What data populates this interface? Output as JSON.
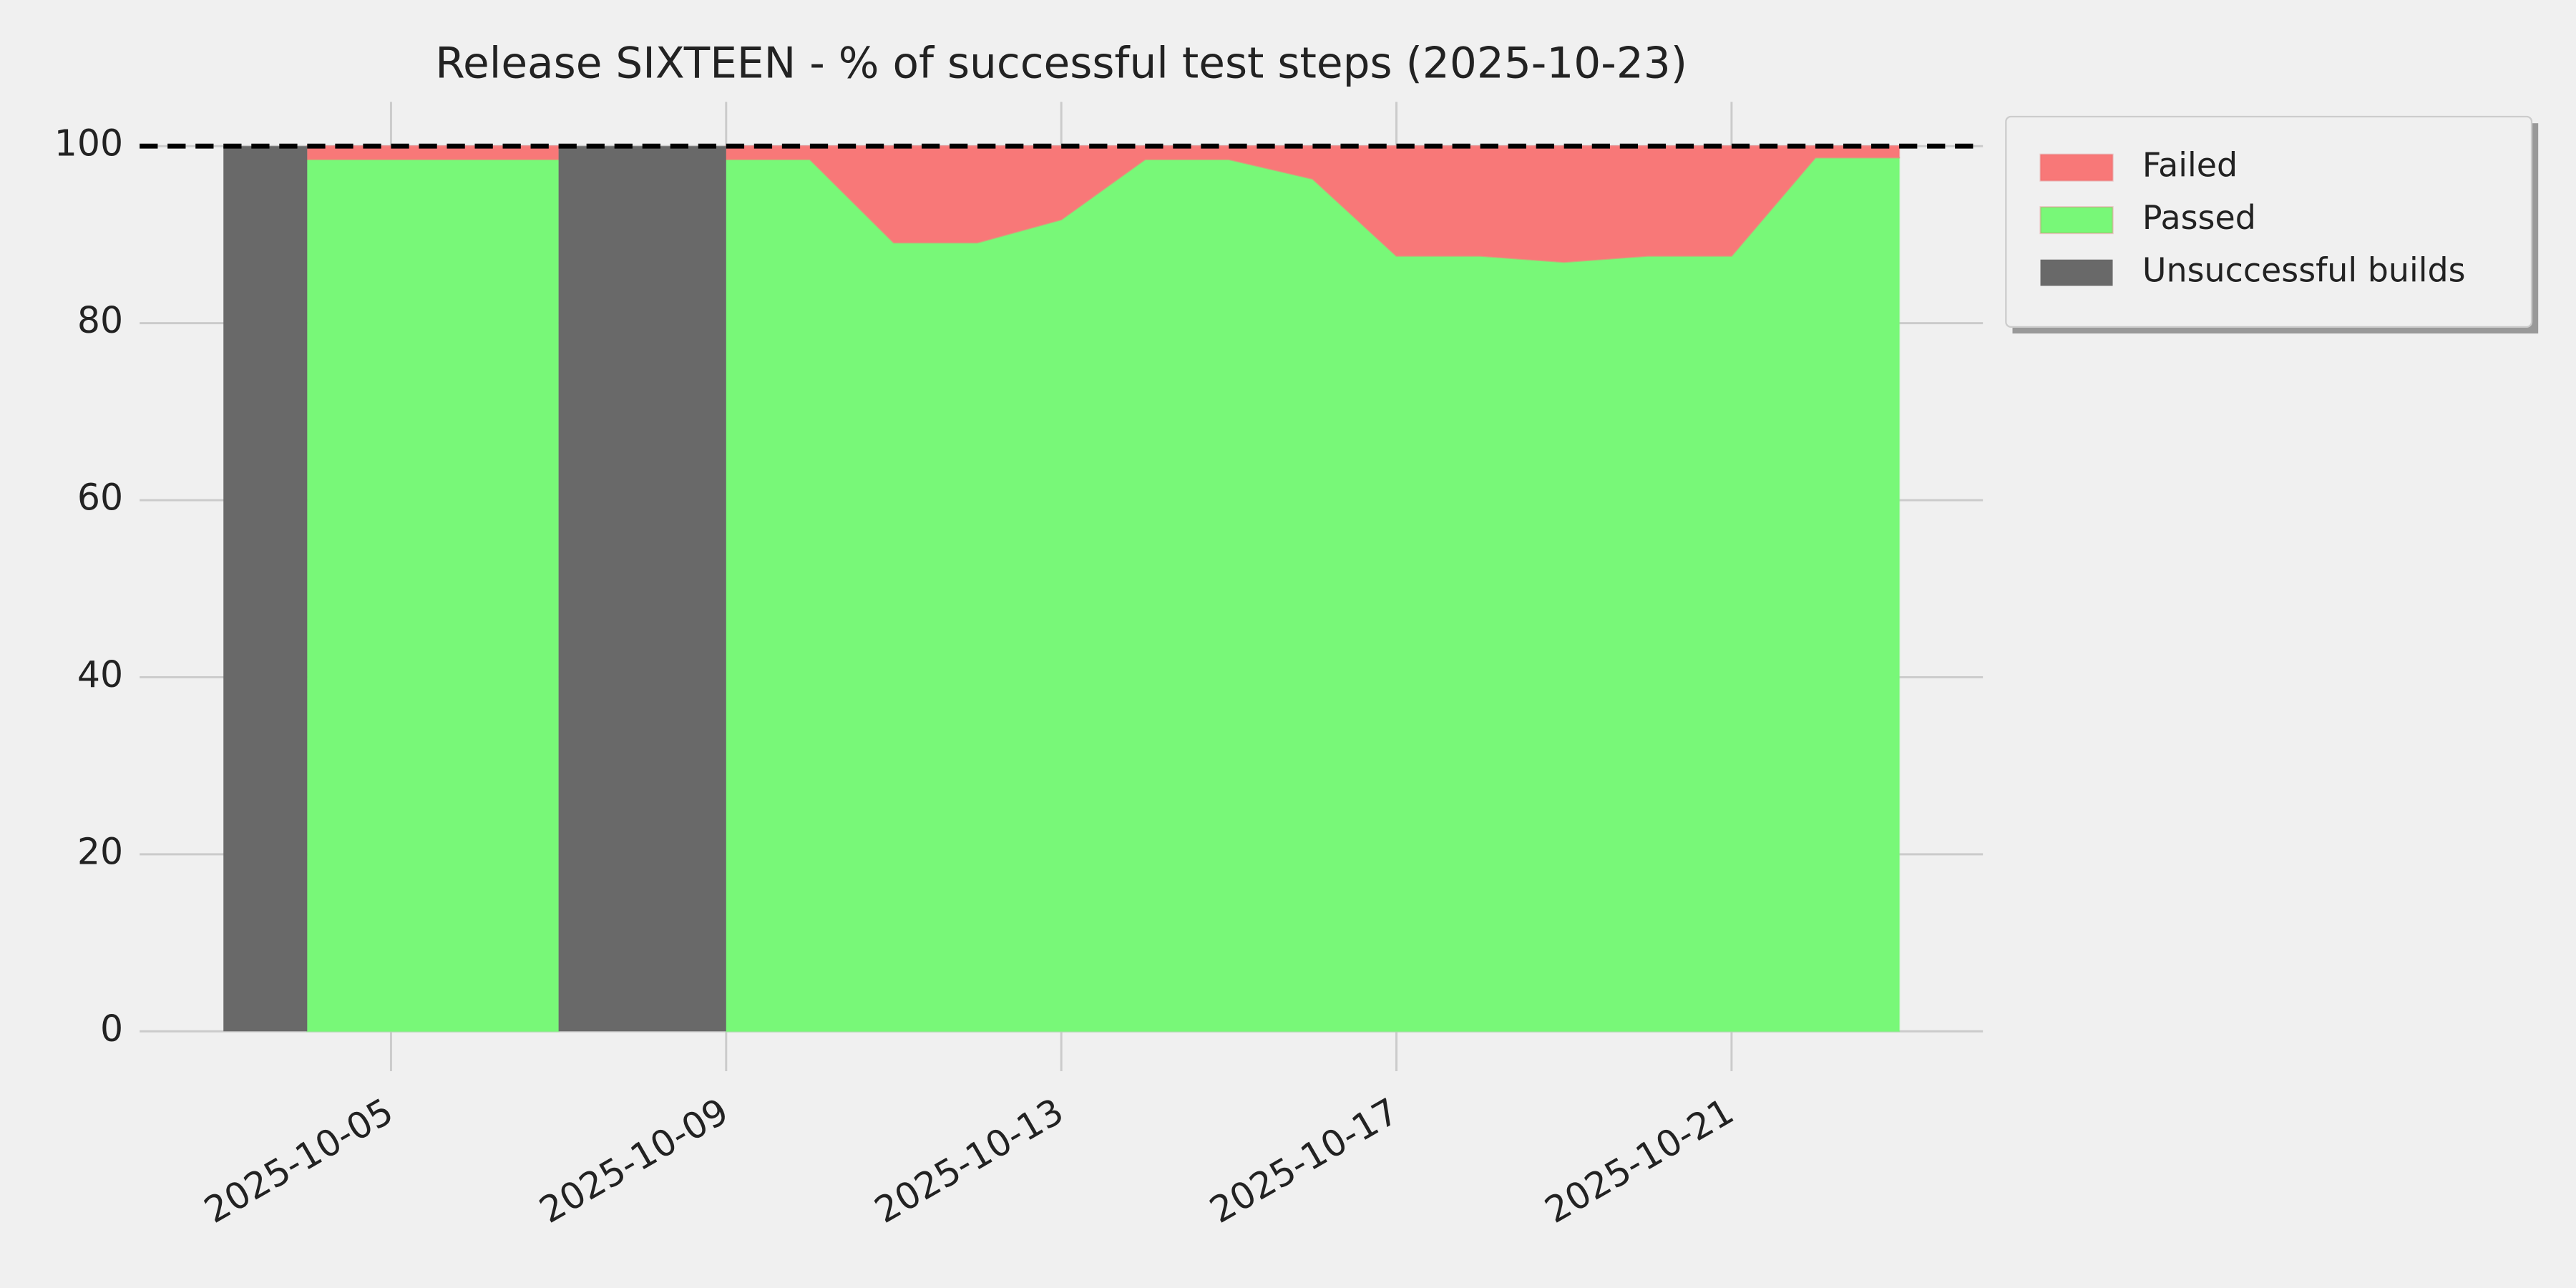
{
  "chart_data": {
    "type": "area",
    "title": "Release SIXTEEN - % of successful test steps (2025-10-23)",
    "x": [
      "2025-10-03",
      "2025-10-04",
      "2025-10-05",
      "2025-10-06",
      "2025-10-07",
      "2025-10-08",
      "2025-10-09",
      "2025-10-10",
      "2025-10-11",
      "2025-10-12",
      "2025-10-13",
      "2025-10-14",
      "2025-10-15",
      "2025-10-16",
      "2025-10-17",
      "2025-10-18",
      "2025-10-19",
      "2025-10-20",
      "2025-10-21",
      "2025-10-22",
      "2025-10-23"
    ],
    "series": [
      {
        "name": "Failed",
        "color": "#f87878",
        "stacked": true,
        "values": [
          null,
          1.5,
          1.5,
          1.5,
          1.5,
          null,
          1.5,
          1.5,
          10.9,
          10.9,
          8.3,
          1.5,
          1.5,
          3.7,
          12.4,
          12.4,
          13.1,
          12.4,
          12.4,
          1.3,
          1.3
        ]
      },
      {
        "name": "Passed",
        "color": "#78f878",
        "stacked": true,
        "values": [
          null,
          98.5,
          98.5,
          98.5,
          98.5,
          null,
          98.5,
          98.5,
          89.1,
          89.1,
          91.7,
          98.5,
          98.5,
          96.3,
          87.6,
          87.6,
          86.9,
          87.6,
          87.6,
          98.7,
          98.7
        ]
      },
      {
        "name": "Unsuccessful builds",
        "color": "#696969",
        "stacked": false,
        "values": [
          100,
          100,
          null,
          null,
          100,
          100,
          100,
          null,
          null,
          null,
          null,
          null,
          null,
          null,
          null,
          null,
          null,
          null,
          null,
          null,
          null
        ]
      }
    ],
    "xlim": [
      "2025-10-02",
      "2025-10-24"
    ],
    "xticks": [
      "2025-10-05",
      "2025-10-09",
      "2025-10-13",
      "2025-10-17",
      "2025-10-21"
    ],
    "ylim": [
      -4.5,
      105
    ],
    "yticks": [
      0,
      20,
      40,
      60,
      80,
      100
    ],
    "hline": 100,
    "grid": true,
    "legend": "outside-right"
  }
}
